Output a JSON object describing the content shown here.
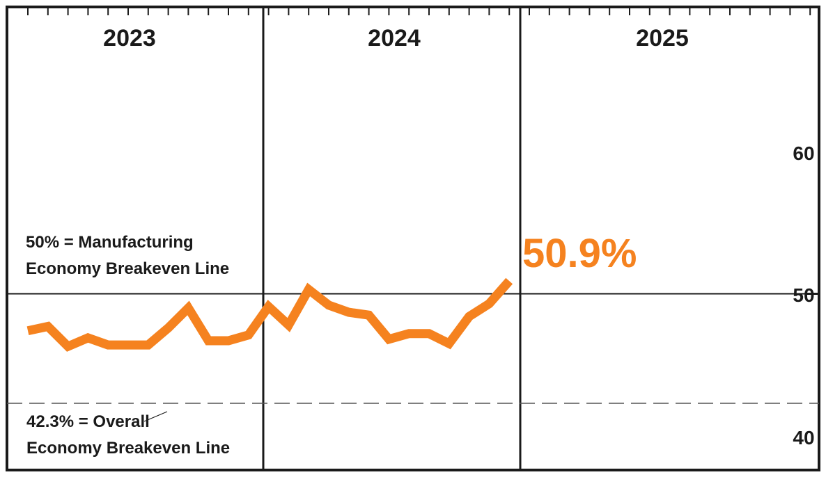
{
  "chart_data": {
    "type": "line",
    "x_unit": "month",
    "categories": [
      "2023",
      "2024",
      "2025"
    ],
    "yticks": [
      40,
      50,
      60
    ],
    "ylim": [
      39.5,
      66.5
    ],
    "x": [
      "2023-01",
      "2023-02",
      "2023-03",
      "2023-04",
      "2023-05",
      "2023-06",
      "2023-07",
      "2023-08",
      "2023-09",
      "2023-10",
      "2023-11",
      "2023-12",
      "2024-01",
      "2024-02",
      "2024-03",
      "2024-04",
      "2024-05",
      "2024-06",
      "2024-07",
      "2024-08",
      "2024-09",
      "2024-10",
      "2024-11",
      "2024-12",
      "2025-01"
    ],
    "series": [
      {
        "name": "",
        "color": "#f5821f",
        "values": [
          47.4,
          47.7,
          46.3,
          46.9,
          46.4,
          46.4,
          46.4,
          47.6,
          49.0,
          46.7,
          46.7,
          47.1,
          49.1,
          47.8,
          50.3,
          49.2,
          48.7,
          48.5,
          46.8,
          47.2,
          47.2,
          46.5,
          48.4,
          49.3,
          50.9
        ]
      }
    ],
    "reference_lines": [
      {
        "value": 50,
        "style": "solid"
      },
      {
        "value": 42.3,
        "style": "dashed"
      }
    ],
    "annotations": {
      "manufacturing_line1": "50% = Manufacturing",
      "manufacturing_line2": "Economy Breakeven Line",
      "overall_line1": "42.3% = Overall",
      "overall_line2": "Economy Breakeven Line",
      "latest_value": "50.9%"
    },
    "grid": false,
    "legend": "none"
  },
  "colors": {
    "frame": "#1a1a1a",
    "line": "#f5821f",
    "dashed": "#555555"
  }
}
